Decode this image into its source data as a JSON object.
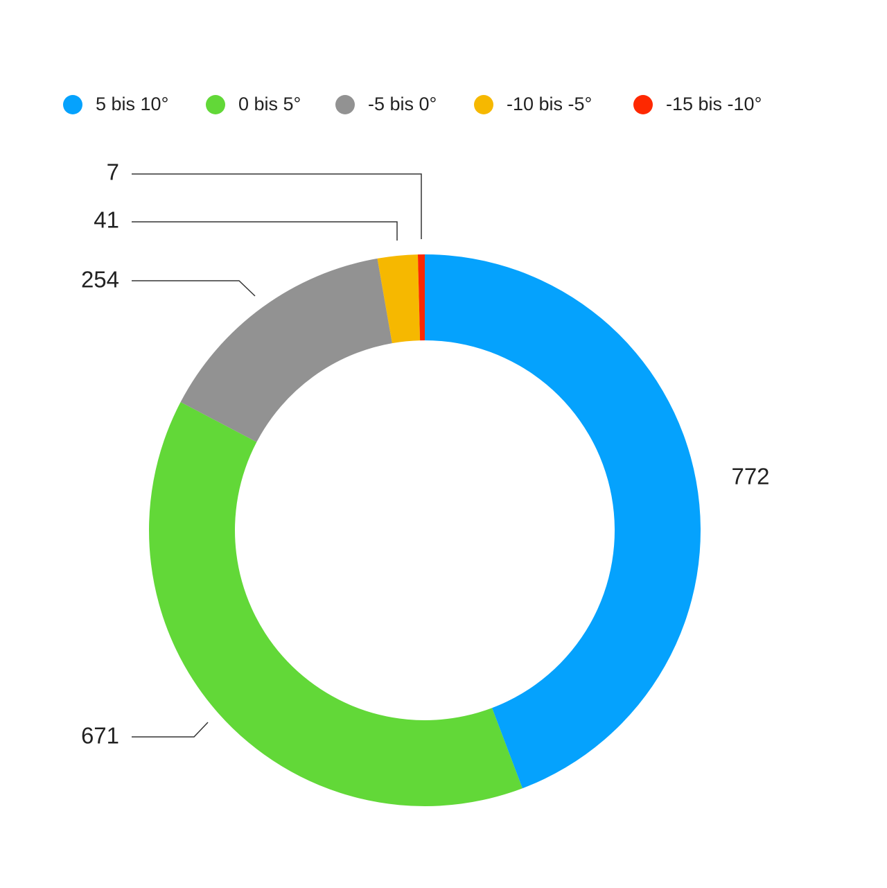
{
  "chart_data": {
    "type": "pie",
    "categories": [
      "5 bis 10°",
      "0 bis 5°",
      "-5 bis 0°",
      "-10 bis -5°",
      "-15 bis -10°"
    ],
    "values": [
      772,
      671,
      254,
      41,
      7
    ],
    "colors": [
      "#05a2fd",
      "#62d838",
      "#929292",
      "#f6b800",
      "#fe2800"
    ],
    "legend": "top"
  }
}
